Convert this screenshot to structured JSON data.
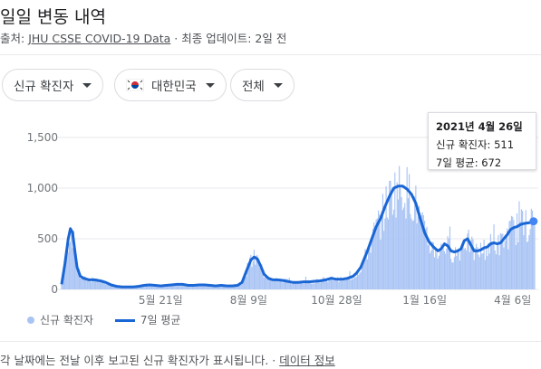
{
  "header": {
    "title": "일일 변동 내역",
    "source_prefix": "출처: ",
    "source_link": "JHU CSSE COVID-19 Data",
    "source_suffix": " · 최종 업데이트: 2일 전"
  },
  "filters": {
    "metric": "신규 확진자",
    "region": "대한민국",
    "period": "전체"
  },
  "tooltip": {
    "date": "2021년 4월 26일",
    "cases_line": "신규 확진자: 511",
    "avg_line": "7일 평균: 672"
  },
  "legend": {
    "bars": "신규 확진자",
    "line": "7일 평균"
  },
  "footer": {
    "note": "각 날짜에는 전날 이후 보고된 신규 확진자가 표시됩니다.",
    "separator": " · ",
    "link": "데이터 정보"
  },
  "colors": {
    "bars": "#a9c4f4",
    "avg_line": "#1a66d4",
    "grid": "#e8eaed"
  },
  "chart_data": {
    "type": "bar",
    "y_ticks": [
      "1,500",
      "1,000",
      "500",
      "0"
    ],
    "y_tick_values": [
      1500,
      1000,
      500,
      0
    ],
    "x_ticks": [
      "5월 21일",
      "8월 9일",
      "10월 28일",
      "1월 16일",
      "4월 6일"
    ],
    "x_tick_days": [
      90,
      170,
      250,
      330,
      410
    ],
    "ylim": [
      0,
      1500
    ],
    "x_start_date": "2020-02-21",
    "x_days": 431,
    "series": [
      {
        "name": "신규 확진자",
        "type": "bar"
      },
      {
        "name": "7일 평균",
        "type": "line"
      }
    ],
    "avg_points": [
      [
        0,
        50
      ],
      [
        3,
        250
      ],
      [
        6,
        500
      ],
      [
        8,
        600
      ],
      [
        10,
        560
      ],
      [
        12,
        380
      ],
      [
        14,
        220
      ],
      [
        17,
        130
      ],
      [
        20,
        110
      ],
      [
        25,
        95
      ],
      [
        30,
        95
      ],
      [
        35,
        85
      ],
      [
        40,
        70
      ],
      [
        45,
        45
      ],
      [
        50,
        30
      ],
      [
        55,
        25
      ],
      [
        60,
        25
      ],
      [
        65,
        25
      ],
      [
        70,
        30
      ],
      [
        75,
        40
      ],
      [
        80,
        45
      ],
      [
        85,
        40
      ],
      [
        90,
        35
      ],
      [
        95,
        40
      ],
      [
        100,
        45
      ],
      [
        105,
        50
      ],
      [
        110,
        50
      ],
      [
        115,
        40
      ],
      [
        120,
        40
      ],
      [
        125,
        45
      ],
      [
        130,
        45
      ],
      [
        135,
        40
      ],
      [
        140,
        35
      ],
      [
        145,
        40
      ],
      [
        150,
        35
      ],
      [
        155,
        35
      ],
      [
        160,
        40
      ],
      [
        164,
        70
      ],
      [
        168,
        180
      ],
      [
        172,
        290
      ],
      [
        175,
        320
      ],
      [
        178,
        300
      ],
      [
        181,
        230
      ],
      [
        184,
        150
      ],
      [
        188,
        110
      ],
      [
        192,
        95
      ],
      [
        196,
        95
      ],
      [
        200,
        90
      ],
      [
        205,
        80
      ],
      [
        210,
        70
      ],
      [
        215,
        70
      ],
      [
        220,
        75
      ],
      [
        225,
        75
      ],
      [
        230,
        80
      ],
      [
        235,
        85
      ],
      [
        240,
        95
      ],
      [
        245,
        110
      ],
      [
        250,
        100
      ],
      [
        255,
        100
      ],
      [
        260,
        110
      ],
      [
        265,
        130
      ],
      [
        268,
        160
      ],
      [
        272,
        220
      ],
      [
        275,
        300
      ],
      [
        278,
        380
      ],
      [
        282,
        500
      ],
      [
        286,
        620
      ],
      [
        290,
        700
      ],
      [
        294,
        820
      ],
      [
        298,
        920
      ],
      [
        302,
        1000
      ],
      [
        306,
        1020
      ],
      [
        310,
        1020
      ],
      [
        314,
        990
      ],
      [
        318,
        940
      ],
      [
        322,
        850
      ],
      [
        326,
        700
      ],
      [
        330,
        560
      ],
      [
        334,
        470
      ],
      [
        338,
        420
      ],
      [
        342,
        380
      ],
      [
        345,
        400
      ],
      [
        348,
        450
      ],
      [
        351,
        430
      ],
      [
        354,
        380
      ],
      [
        357,
        370
      ],
      [
        360,
        380
      ],
      [
        363,
        400
      ],
      [
        366,
        480
      ],
      [
        369,
        500
      ],
      [
        372,
        440
      ],
      [
        375,
        380
      ],
      [
        378,
        380
      ],
      [
        381,
        390
      ],
      [
        384,
        410
      ],
      [
        387,
        420
      ],
      [
        390,
        450
      ],
      [
        393,
        460
      ],
      [
        396,
        450
      ],
      [
        399,
        460
      ],
      [
        402,
        500
      ],
      [
        405,
        540
      ],
      [
        408,
        590
      ],
      [
        411,
        610
      ],
      [
        414,
        620
      ],
      [
        417,
        640
      ],
      [
        420,
        650
      ],
      [
        423,
        655
      ],
      [
        426,
        660
      ],
      [
        429,
        672
      ]
    ]
  }
}
